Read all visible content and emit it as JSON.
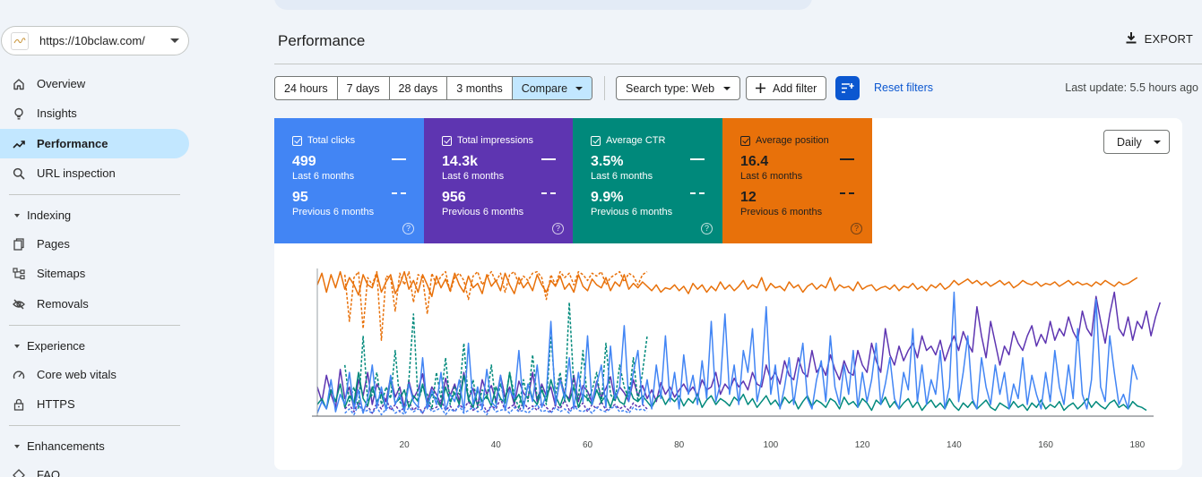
{
  "property": {
    "url": "https://10bclaw.com/"
  },
  "nav": {
    "overview": "Overview",
    "insights": "Insights",
    "performance": "Performance",
    "url_inspection": "URL inspection",
    "indexing": "Indexing",
    "pages": "Pages",
    "sitemaps": "Sitemaps",
    "removals": "Removals",
    "experience": "Experience",
    "core_web_vitals": "Core web vitals",
    "https": "HTTPS",
    "enhancements": "Enhancements",
    "faq": "FAQ"
  },
  "header": {
    "title": "Performance",
    "export": "EXPORT"
  },
  "filters": {
    "ranges": [
      "24 hours",
      "7 days",
      "28 days",
      "3 months",
      "Compare"
    ],
    "selected_range": "Compare",
    "search_type": "Search type: Web",
    "add_filter": "Add filter",
    "reset": "Reset filters",
    "last_update": "Last update: 5.5 hours ago"
  },
  "metrics": [
    {
      "label": "Total clicks",
      "current": "499",
      "current_label": "Last 6 months",
      "previous": "95",
      "previous_label": "Previous 6 months",
      "color": "#4285f4"
    },
    {
      "label": "Total impressions",
      "current": "14.3k",
      "current_label": "Last 6 months",
      "previous": "956",
      "previous_label": "Previous 6 months",
      "color": "#5e35b1"
    },
    {
      "label": "Average CTR",
      "current": "3.5%",
      "current_label": "Last 6 months",
      "previous": "9.9%",
      "previous_label": "Previous 6 months",
      "color": "#00897b"
    },
    {
      "label": "Average position",
      "current": "16.4",
      "current_label": "Last 6 months",
      "previous": "12",
      "previous_label": "Previous 6 months",
      "color": "#e8710a"
    }
  ],
  "granularity": "Daily",
  "chart_data": {
    "type": "line",
    "x_ticks": [
      "20",
      "40",
      "60",
      "80",
      "100",
      "120",
      "140",
      "160",
      "180"
    ],
    "xlim": [
      1,
      182
    ],
    "ylim": [
      0,
      1
    ],
    "grid": false,
    "series": [
      {
        "name": "Average position",
        "color": "#e8710a",
        "style": "solid",
        "values": [
          0.9,
          0.98,
          0.85,
          0.97,
          0.88,
          0.99,
          0.87,
          0.95,
          0.9,
          0.83,
          0.97,
          0.9,
          0.88,
          0.98,
          0.85,
          0.92,
          0.97,
          0.84,
          0.9,
          0.99,
          0.87,
          0.93,
          0.85,
          0.97,
          0.9,
          0.82,
          0.96,
          0.88,
          0.94,
          0.86,
          0.98,
          0.9,
          0.85,
          0.96,
          0.88,
          0.91,
          0.84,
          0.97,
          0.89,
          0.93,
          0.86,
          0.98,
          0.9,
          0.84,
          0.95,
          0.88,
          0.92,
          0.86,
          0.97,
          0.9,
          0.85,
          0.93,
          0.89,
          0.96,
          0.87,
          0.91,
          0.85,
          0.97,
          0.89,
          0.86,
          0.94,
          0.9,
          0.88,
          0.95,
          0.86,
          0.92,
          0.89,
          0.97,
          0.87,
          0.91,
          0.88,
          0.92,
          0.89,
          0.86,
          0.9,
          0.85,
          0.88,
          0.87,
          0.9,
          0.86,
          0.89,
          0.84,
          0.91,
          0.87,
          0.9,
          0.85,
          0.89,
          0.86,
          0.92,
          0.87,
          0.9,
          0.86,
          0.89,
          0.93,
          0.87,
          0.9,
          0.88,
          0.95,
          0.86,
          0.91,
          0.88,
          0.89,
          0.86,
          0.92,
          0.88,
          0.9,
          0.85,
          0.89,
          0.91,
          0.87,
          0.9,
          0.88,
          0.95,
          0.86,
          0.9,
          0.88,
          0.89,
          0.86,
          0.92,
          0.87,
          0.89,
          0.9,
          0.86,
          0.88,
          0.89,
          0.87,
          0.9,
          0.86,
          0.89,
          0.88,
          0.91,
          0.87,
          0.89,
          0.86,
          0.9,
          0.88,
          0.91,
          0.87,
          0.89,
          0.93,
          0.9,
          0.92,
          0.94,
          0.91,
          0.93,
          0.9,
          0.92,
          0.89,
          0.91,
          0.93,
          0.9,
          0.92,
          0.88,
          0.9,
          0.93,
          0.91,
          0.9,
          0.92,
          0.89,
          0.91,
          0.9,
          0.92,
          0.89,
          0.91,
          0.93,
          0.9,
          0.92,
          0.9,
          0.91,
          0.89,
          0.92,
          0.9,
          0.93,
          0.91,
          0.89,
          0.92,
          0.9,
          0.91,
          0.93,
          0.95
        ]
      },
      {
        "name": "Average position (previous)",
        "color": "#e8710a",
        "style": "dashed",
        "values": [
          null,
          null,
          null,
          null,
          null,
          null,
          0.97,
          0.65,
          0.95,
          0.99,
          0.6,
          0.95,
          0.9,
          0.99,
          0.52,
          0.96,
          0.95,
          0.72,
          0.98,
          0.9,
          0.99,
          0.78,
          0.97,
          0.95,
          0.7,
          0.98,
          0.9,
          0.96,
          0.99,
          0.85,
          0.95,
          0.98,
          0.93,
          0.8,
          0.96,
          0.99,
          0.9,
          0.95,
          0.99,
          0.92,
          0.98,
          0.85,
          0.97,
          0.99,
          0.9,
          0.96,
          0.93,
          0.98,
          0.99,
          0.95,
          0.8,
          0.97,
          0.9,
          0.99,
          0.95,
          0.98,
          0.9,
          0.99,
          0.97,
          0.93,
          0.98,
          0.96,
          0.99,
          0.9,
          0.95,
          0.97,
          0.99,
          0.92,
          0.98,
          0.96,
          0.9,
          0.97,
          0.99
        ]
      },
      {
        "name": "Total impressions",
        "color": "#5e35b1",
        "style": "solid",
        "values": [
          0.2,
          0.1,
          0.28,
          0.15,
          0.06,
          0.32,
          0.12,
          0.2,
          0.05,
          0.25,
          0.14,
          0.3,
          0.08,
          0.22,
          0.16,
          0.1,
          0.27,
          0.13,
          0.2,
          0.06,
          0.24,
          0.12,
          0.18,
          0.29,
          0.1,
          0.2,
          0.15,
          0.08,
          0.26,
          0.14,
          0.22,
          0.1,
          0.3,
          0.12,
          0.19,
          0.07,
          0.25,
          0.15,
          0.21,
          0.1,
          0.28,
          0.13,
          0.2,
          0.08,
          0.24,
          0.16,
          0.12,
          0.3,
          0.1,
          0.22,
          0.14,
          0.2,
          0.07,
          0.26,
          0.15,
          0.12,
          0.28,
          0.1,
          0.21,
          0.17,
          0.09,
          0.24,
          0.13,
          0.19,
          0.27,
          0.11,
          0.2,
          0.16,
          0.1,
          0.25,
          0.14,
          0.21,
          0.12,
          0.18,
          0.1,
          0.23,
          0.15,
          0.2,
          0.13,
          0.18,
          0.22,
          0.16,
          0.2,
          0.14,
          0.25,
          0.18,
          0.2,
          0.3,
          0.15,
          0.22,
          0.18,
          0.26,
          0.2,
          0.24,
          0.18,
          0.3,
          0.22,
          0.2,
          0.35,
          0.25,
          0.3,
          0.22,
          0.38,
          0.28,
          0.25,
          0.4,
          0.3,
          0.27,
          0.45,
          0.3,
          0.35,
          0.28,
          0.42,
          0.32,
          0.25,
          0.38,
          0.3,
          0.28,
          0.45,
          0.35,
          0.3,
          0.5,
          0.38,
          0.3,
          0.6,
          0.42,
          0.35,
          0.48,
          0.38,
          0.45,
          0.5,
          0.4,
          0.55,
          0.45,
          0.48,
          0.42,
          0.52,
          0.38,
          0.47,
          0.55,
          0.45,
          0.58,
          0.5,
          0.44,
          0.75,
          0.55,
          0.4,
          0.65,
          0.5,
          0.35,
          0.48,
          0.42,
          0.58,
          0.5,
          0.45,
          0.55,
          0.62,
          0.48,
          0.56,
          0.5,
          0.65,
          0.52,
          0.6,
          0.55,
          0.68,
          0.58,
          0.52,
          0.72,
          0.6,
          0.55,
          0.82,
          0.65,
          0.5,
          0.7,
          0.85,
          0.6,
          0.55,
          0.68,
          0.52,
          0.65,
          0.6,
          0.72,
          0.55,
          0.68,
          0.78
        ]
      },
      {
        "name": "Total impressions (previous)",
        "color": "#5e35b1",
        "style": "dashed",
        "values": [
          null,
          null,
          null,
          null,
          null,
          null,
          0.05,
          0.08,
          0.03,
          0.1,
          0.04,
          0.07,
          0.02,
          0.09,
          0.05,
          0.12,
          0.04,
          0.08,
          0.03,
          0.06,
          0.1,
          0.04,
          0.07,
          0.02,
          0.09,
          0.05,
          0.06,
          0.11,
          0.04,
          0.07,
          0.03,
          0.08,
          0.05,
          0.1,
          0.04,
          0.06,
          0.09,
          0.03,
          0.07,
          0.05,
          0.12,
          0.04,
          0.06,
          0.08,
          0.03,
          0.1,
          0.05,
          0.07,
          0.04,
          0.09,
          0.06,
          0.03,
          0.08,
          0.05,
          0.11,
          0.04,
          0.07,
          0.06,
          0.09,
          0.03,
          0.08,
          0.05,
          0.1,
          0.04,
          0.06,
          0.08,
          0.05,
          0.07,
          0.04,
          0.09,
          0.06,
          0.08,
          0.05
        ]
      },
      {
        "name": "Average CTR",
        "color": "#00897b",
        "style": "solid",
        "values": [
          0.08,
          0.12,
          0.05,
          0.18,
          0.1,
          0.22,
          0.06,
          0.14,
          0.09,
          0.3,
          0.12,
          0.07,
          0.2,
          0.1,
          0.15,
          0.05,
          0.25,
          0.09,
          0.12,
          0.18,
          0.06,
          0.14,
          0.1,
          0.22,
          0.08,
          0.15,
          0.12,
          0.06,
          0.2,
          0.1,
          0.16,
          0.08,
          0.28,
          0.12,
          0.06,
          0.18,
          0.1,
          0.14,
          0.07,
          0.2,
          0.12,
          0.09,
          0.3,
          0.1,
          0.15,
          0.06,
          0.22,
          0.12,
          0.08,
          0.18,
          0.1,
          0.25,
          0.14,
          0.07,
          0.16,
          0.1,
          0.2,
          0.06,
          0.15,
          0.12,
          0.08,
          0.18,
          0.1,
          0.14,
          0.06,
          0.16,
          0.1,
          0.08,
          0.2,
          0.12,
          0.1,
          0.14,
          0.1,
          0.06,
          0.12,
          0.15,
          0.08,
          0.13,
          0.1,
          0.14,
          0.07,
          0.12,
          0.09,
          0.15,
          0.06,
          0.11,
          0.14,
          0.08,
          0.12,
          0.1,
          0.07,
          0.13,
          0.1,
          0.15,
          0.08,
          0.12,
          0.06,
          0.1,
          0.14,
          0.08,
          0.11,
          0.06,
          0.13,
          0.09,
          0.12,
          0.05,
          0.1,
          0.14,
          0.07,
          0.11,
          0.09,
          0.06,
          0.12,
          0.1,
          0.05,
          0.13,
          0.08,
          0.1,
          0.06,
          0.12,
          0.09,
          0.04,
          0.11,
          0.08,
          0.13,
          0.06,
          0.1,
          0.05,
          0.09,
          0.12,
          0.06,
          0.1,
          0.04,
          0.08,
          0.11,
          0.06,
          0.09,
          0.05,
          0.12,
          0.07,
          0.04,
          0.09,
          0.06,
          0.1,
          0.05,
          0.08,
          0.11,
          0.06,
          0.04,
          0.09,
          0.07,
          0.05,
          0.1,
          0.06,
          0.08,
          0.04,
          0.09,
          0.06,
          0.11,
          0.05,
          0.08,
          0.06,
          0.1,
          0.04,
          0.07,
          0.09,
          0.05,
          0.08,
          0.12,
          0.06,
          0.1,
          0.07,
          0.05,
          0.09,
          0.11,
          0.06,
          0.08,
          0.05,
          0.1,
          0.07,
          0.06,
          0.04
        ]
      },
      {
        "name": "Average CTR (previous)",
        "color": "#00897b",
        "style": "dashed",
        "values": [
          null,
          null,
          null,
          null,
          null,
          null,
          0.35,
          0.1,
          0.2,
          0.05,
          0.55,
          0.1,
          0.15,
          0.3,
          0.08,
          0.2,
          0.12,
          0.45,
          0.1,
          0.05,
          0.25,
          0.7,
          0.1,
          0.2,
          0.15,
          0.05,
          0.3,
          0.12,
          0.4,
          0.08,
          0.2,
          0.15,
          0.5,
          0.1,
          0.25,
          0.06,
          0.18,
          0.12,
          0.35,
          0.08,
          0.22,
          0.1,
          0.3,
          0.15,
          0.05,
          0.25,
          0.1,
          0.42,
          0.12,
          0.2,
          0.08,
          0.55,
          0.15,
          0.3,
          0.1,
          0.78,
          0.2,
          0.12,
          0.45,
          0.1,
          0.18,
          0.3,
          0.08,
          0.5,
          0.15,
          0.1,
          0.35,
          0.2,
          0.12,
          0.4,
          0.1,
          0.3,
          0.55
        ]
      },
      {
        "name": "Total clicks",
        "color": "#4285f4",
        "style": "solid",
        "values": [
          0.02,
          0.1,
          0.05,
          0.25,
          0.03,
          0.15,
          0.08,
          0.3,
          0.05,
          0.18,
          0.02,
          0.12,
          0.35,
          0.06,
          0.2,
          0.04,
          0.28,
          0.08,
          0.15,
          0.03,
          0.22,
          0.1,
          0.06,
          0.4,
          0.05,
          0.18,
          0.08,
          0.3,
          0.04,
          0.15,
          0.1,
          0.25,
          0.03,
          0.5,
          0.08,
          0.2,
          0.05,
          0.32,
          0.1,
          0.06,
          0.28,
          0.04,
          0.18,
          0.12,
          0.45,
          0.05,
          0.22,
          0.1,
          0.35,
          0.06,
          0.15,
          0.65,
          0.08,
          0.25,
          0.12,
          0.4,
          0.05,
          0.3,
          0.1,
          0.55,
          0.08,
          0.22,
          0.35,
          0.06,
          0.48,
          0.12,
          0.2,
          0.62,
          0.1,
          0.3,
          0.45,
          0.08,
          0.25,
          0.05,
          0.35,
          0.12,
          0.55,
          0.1,
          0.3,
          0.05,
          0.42,
          0.15,
          0.28,
          0.08,
          0.38,
          0.12,
          0.65,
          0.1,
          0.22,
          0.7,
          0.15,
          0.35,
          0.08,
          0.45,
          0.3,
          0.6,
          0.1,
          0.25,
          0.75,
          0.15,
          0.35,
          0.05,
          0.2,
          0.4,
          0.08,
          0.3,
          0.5,
          0.12,
          0.05,
          0.25,
          0.38,
          0.1,
          0.55,
          0.2,
          0.08,
          0.35,
          0.15,
          0.45,
          0.06,
          0.3,
          0.1,
          0.25,
          0.5,
          0.08,
          0.22,
          0.4,
          0.12,
          0.05,
          0.3,
          0.18,
          0.6,
          0.1,
          0.35,
          0.08,
          0.25,
          0.15,
          0.45,
          0.05,
          0.2,
          0.85,
          0.1,
          0.3,
          0.55,
          0.12,
          0.05,
          0.4,
          0.2,
          0.08,
          0.35,
          0.15,
          0.3,
          0.05,
          0.22,
          0.12,
          0.4,
          0.08,
          0.28,
          0.15,
          0.05,
          0.3,
          0.1,
          0.45,
          0.2,
          0.08,
          0.35,
          0.12,
          0.6,
          0.15,
          0.05,
          0.25,
          0.8,
          0.2,
          0.1,
          0.55,
          0.3,
          0.08,
          0.15,
          0.05,
          0.35,
          0.25
        ]
      },
      {
        "name": "Total clicks (previous)",
        "color": "#4285f4",
        "style": "dashed",
        "values": [
          null,
          null,
          null,
          null,
          null,
          null,
          0.02,
          0.05,
          0.01,
          0.08,
          0.03,
          0.04,
          0.02,
          0.06,
          0.01,
          0.05,
          0.07,
          0.02,
          0.04,
          0.01,
          0.06,
          0.03,
          0.05,
          0.02,
          0.08,
          0.03,
          0.04,
          0.06,
          0.01,
          0.05,
          0.03,
          0.07,
          0.02,
          0.04,
          0.06,
          0.03,
          0.05,
          0.01,
          0.07,
          0.03,
          0.04,
          0.05,
          0.02,
          0.06,
          0.03,
          0.04,
          0.02,
          0.05,
          0.08,
          0.03,
          0.04,
          0.02,
          0.06,
          0.03,
          0.05,
          0.02,
          0.07,
          0.04,
          0.03,
          0.05,
          0.02,
          0.06,
          0.04,
          0.03,
          0.05,
          0.07,
          0.03,
          0.04,
          0.02,
          0.06,
          0.04,
          0.05,
          0.03
        ]
      }
    ]
  }
}
